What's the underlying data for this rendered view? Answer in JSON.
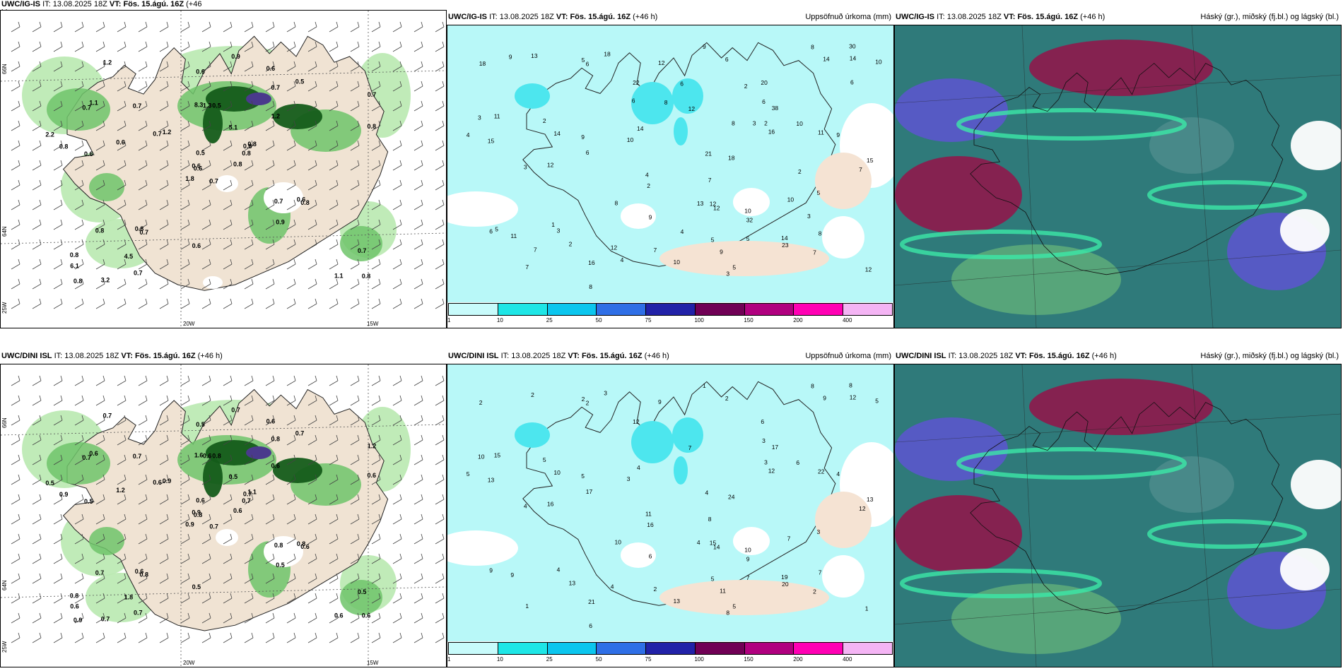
{
  "rows": [
    {
      "model": "UWC/IG-IS",
      "it_label": "IT:",
      "it": "13.08.2025 18Z",
      "vt_label": "VT:",
      "vt": "Fös. 15.ágú. 16Z",
      "lead": "(+46",
      "lead2": "h)",
      "lead_full": "(+46 h)"
    },
    {
      "model": "UWC/DINI ISL",
      "it_label": "IT:",
      "it": "13.08.2025 18Z",
      "vt_label": "VT:",
      "vt": "Fös. 15.ágú. 16Z",
      "lead": "(+46 h)",
      "lead2": "",
      "lead_full": "(+46 h)"
    }
  ],
  "precip_title": "Uppsöfnuð úrkoma (mm)",
  "cloud_title": "Háský (gr.), miðský (fj.bl.) og lágský (bl.)",
  "colorbar": {
    "ticks": [
      "1",
      "10",
      "25",
      "50",
      "75",
      "100",
      "150",
      "200",
      "400"
    ],
    "colors": [
      "#c8fbfb",
      "#1ee6e6",
      "#0bc6ee",
      "#2f6fe6",
      "#2222a8",
      "#700055",
      "#b0007f",
      "#ff00b4",
      "#f4b4f4"
    ]
  },
  "axis": {
    "lon_20": "20W",
    "lon_15": "15W",
    "lat_66": "66N",
    "lat_64": "64N",
    "lat_25": "25W"
  },
  "colors": {
    "land": "#f0e3d3",
    "light_green": "#b9e9b0",
    "mid_green": "#6fc46a",
    "dark_green": "#145c1a",
    "purple": "#4a3a8c",
    "cyan_fill": "#b8f8f8",
    "cloud_teal": "#2f7a7a",
    "cloud_maroon": "#8a1e4e",
    "cloud_violet": "#5858c8",
    "cloud_mint": "#3ce8a8"
  },
  "wind_labels_top": [
    "0.7",
    "0.7",
    "0.6",
    "0.8",
    "0.8",
    "0.7",
    "0.6",
    "0.5",
    "0.7",
    "0.8",
    "1.2",
    "0.8",
    "0.6",
    "0.7",
    "1.8",
    "1.2",
    "3.2",
    "8.3",
    "5.1",
    "0.8",
    "1.2",
    "6.1",
    "4.5",
    "1.3",
    "0.8",
    "0.8",
    "1.1",
    "0.6",
    "0.8",
    "0.7",
    "0.8",
    "0.6",
    "0.6",
    "0.5",
    "0.7",
    "0.5",
    "0.8",
    "1.1",
    "0.7",
    "0.6",
    "0.9",
    "0.7",
    "0.6",
    "0.9",
    "0.7",
    "2.2",
    "0.8",
    "0.8"
  ],
  "wind_labels_bottom": [
    "0.7",
    "0.7",
    "0.8",
    "0.8",
    "0.7",
    "0.8",
    "0.6",
    "0.8",
    "0.8",
    "0.6",
    "0.7",
    "0.6",
    "0.5",
    "1.2",
    "0.9",
    "0.6",
    "0.7",
    "1.6",
    "0.5",
    "0.7",
    "0.9",
    "0.6",
    "1.8",
    "0.6",
    "1.1",
    "0.6",
    "0.6",
    "0.5",
    "0.9",
    "0.8",
    "0.6",
    "0.9",
    "0.5",
    "0.6",
    "0.7",
    "0.7",
    "0.6",
    "0.6",
    "0.5",
    "0.8",
    "0.7",
    "0.6",
    "1.2",
    "0.5",
    "0.7",
    "0.5",
    "0.7",
    "0.9"
  ],
  "precip_numbers_top": [
    "5",
    "6",
    "3",
    "2",
    "10",
    "9",
    "7",
    "6",
    "2",
    "2",
    "11",
    "3",
    "4",
    "12",
    "16",
    "8",
    "15",
    "14",
    "10",
    "11",
    "14",
    "12",
    "16",
    "23",
    "18",
    "38",
    "12",
    "14",
    "10",
    "22",
    "32",
    "30",
    "20",
    "12",
    "18",
    "7",
    "9",
    "11",
    "15",
    "10",
    "12",
    "21",
    "10",
    "8",
    "6",
    "5",
    "13",
    "9",
    "7",
    "14",
    "8",
    "12",
    "9",
    "6",
    "18",
    "12",
    "7",
    "14",
    "8",
    "6",
    "4",
    "3",
    "2",
    "3",
    "5",
    "7",
    "13",
    "5",
    "5",
    "10",
    "9",
    "8",
    "7",
    "6",
    "4",
    "3",
    "2",
    "1",
    "3",
    "5",
    "8",
    "9",
    "2",
    "4",
    "6",
    "6"
  ],
  "precip_numbers_bottom": [
    "5",
    "2",
    "4",
    "5",
    "6",
    "11",
    "12",
    "17",
    "16",
    "13",
    "9",
    "10",
    "11",
    "15",
    "12",
    "8",
    "13",
    "9",
    "7",
    "22",
    "19",
    "14",
    "21",
    "20",
    "24",
    "17",
    "16",
    "10",
    "13",
    "12",
    "9",
    "8",
    "6",
    "4",
    "3",
    "2",
    "1",
    "15",
    "13",
    "10",
    "9",
    "4",
    "5",
    "7",
    "2",
    "3",
    "4",
    "6",
    "8",
    "12",
    "10",
    "7",
    "5",
    "3",
    "2",
    "1",
    "2",
    "4",
    "6",
    "9",
    "5",
    "8",
    "3",
    "4",
    "2",
    "1",
    "2",
    "5",
    "7",
    "3",
    "4"
  ]
}
